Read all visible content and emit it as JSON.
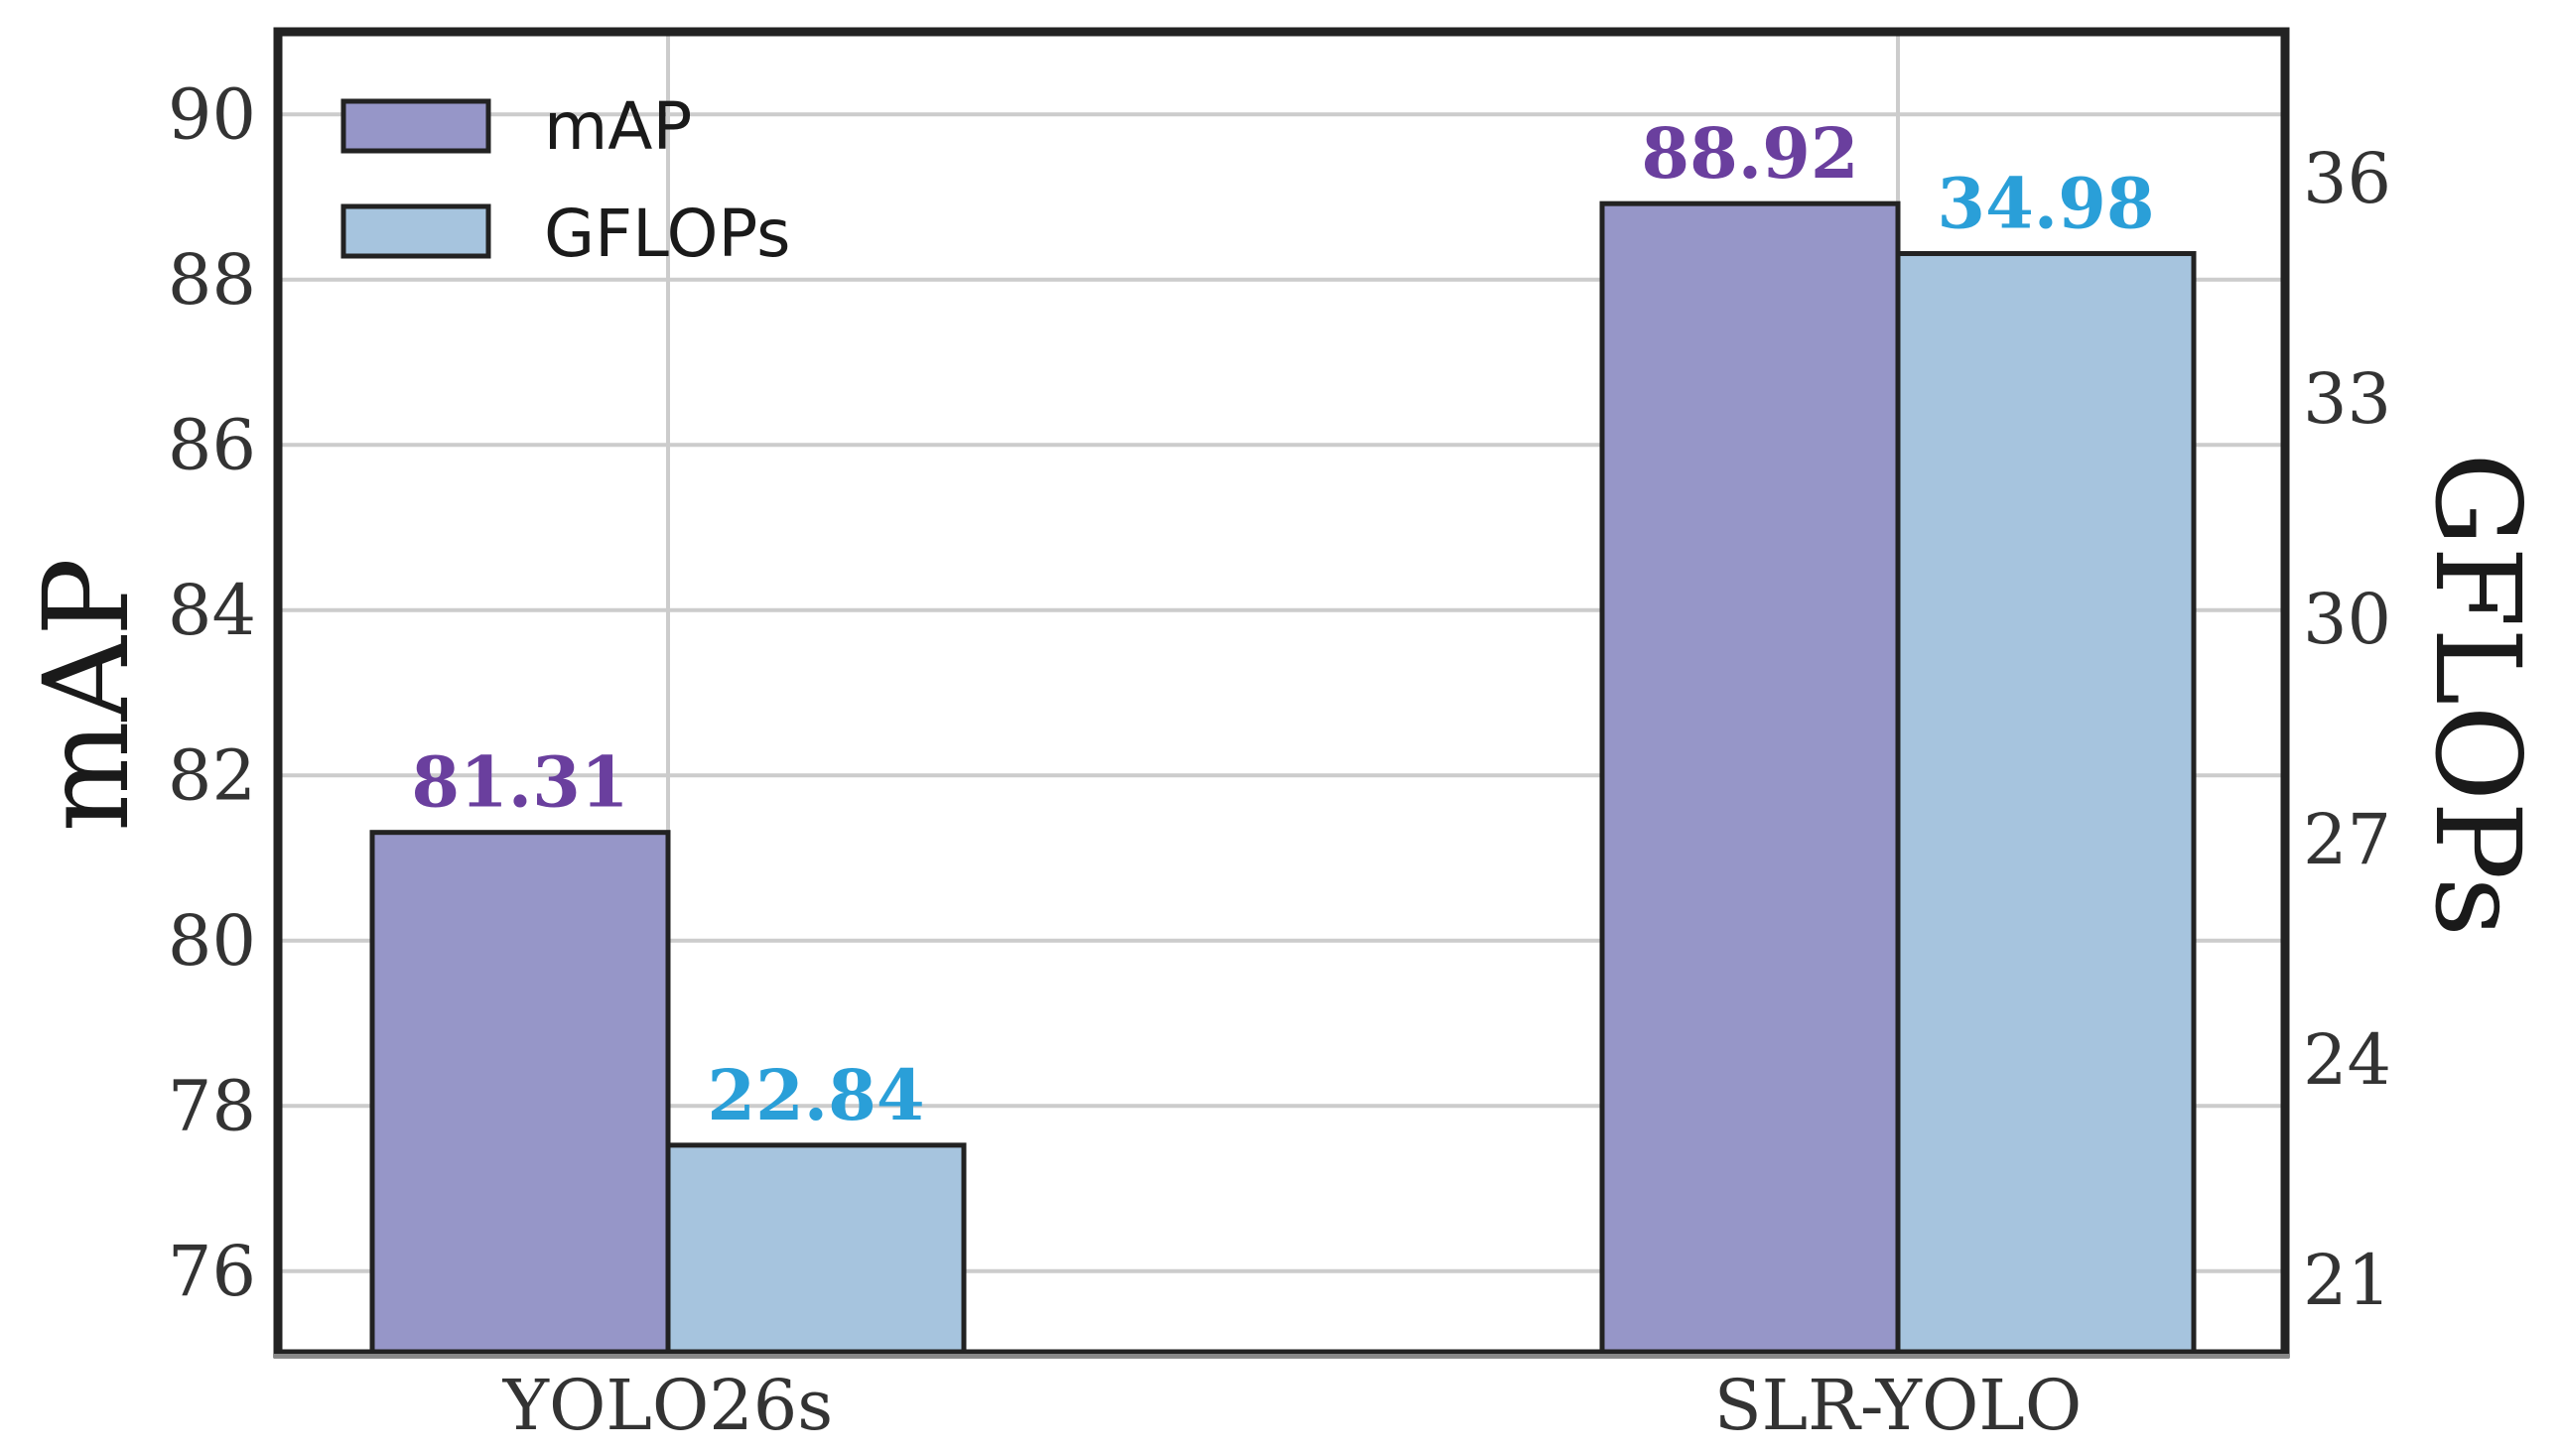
{
  "chart_data": {
    "type": "bar",
    "categories": [
      "YOLO26s",
      "SLR-YOLO"
    ],
    "series": [
      {
        "name": "mAP",
        "axis": "left",
        "values": [
          81.31,
          88.92
        ],
        "labels": [
          "81.31",
          "88.92"
        ],
        "color": "#9696c8",
        "label_color": "#6a3f9e"
      },
      {
        "name": "GFLOPs",
        "axis": "right",
        "values": [
          22.84,
          34.98
        ],
        "labels": [
          "22.84",
          "34.98"
        ],
        "color": "#a6c4de",
        "label_color": "#2a9fd8"
      }
    ],
    "ylabel": "mAP",
    "ylabel_right": "GFLOPs",
    "ylim": [
      75,
      91
    ],
    "ylim_right": [
      20,
      38
    ],
    "yticks": [
      "76",
      "78",
      "80",
      "82",
      "84",
      "86",
      "88",
      "90"
    ],
    "yticks_right": [
      "21",
      "24",
      "27",
      "30",
      "33",
      "36"
    ],
    "legend": {
      "placement": "top-left",
      "entries": [
        "mAP",
        "GFLOPs"
      ]
    },
    "grid": true
  }
}
